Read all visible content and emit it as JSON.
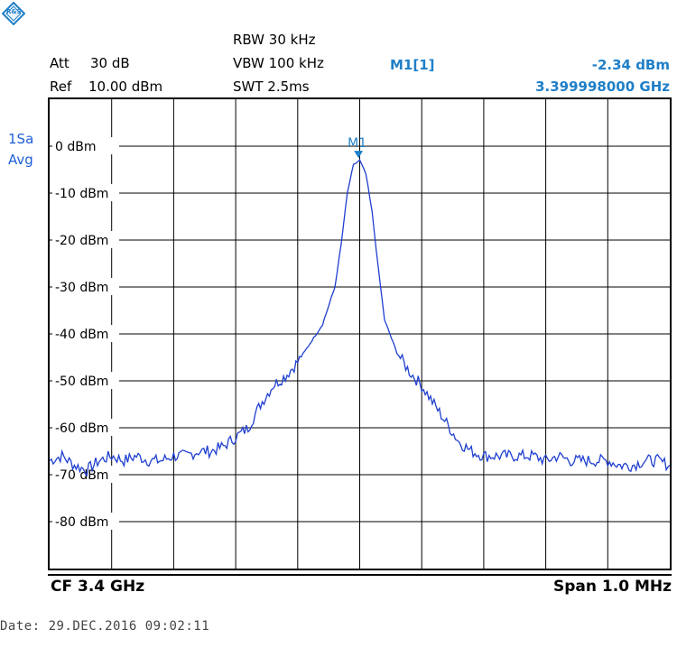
{
  "logo": {
    "text": "R&S"
  },
  "settings": {
    "att_label": "Att",
    "att_value": "30 dB",
    "ref_label": "Ref",
    "ref_value": "10.00 dBm",
    "rbw": "RBW 30 kHz",
    "vbw": "VBW 100 kHz",
    "swt": "SWT 2.5ms"
  },
  "marker": {
    "name": "M1[1]",
    "level": "-2.34 dBm",
    "freq": "3.399998000 GHz",
    "label": "M1"
  },
  "trace_info": {
    "line1": "1Sa",
    "line2": "Avg"
  },
  "footer": {
    "cf": "CF 3.4 GHz",
    "span": "Span 1.0 MHz"
  },
  "date": "Date: 29.DEC.2016  09:02:11",
  "colors": {
    "trace": "#1f3fd0",
    "marker": "#1f7fc8",
    "grid": "#000000"
  },
  "chart_data": {
    "type": "line",
    "title": "",
    "xlabel": "",
    "ylabel": "",
    "xlim": [
      3.3995,
      3.4005
    ],
    "ylim": [
      -90,
      10
    ],
    "y_ticks": [
      {
        "value": 0,
        "label": "0 dBm"
      },
      {
        "value": -10,
        "label": "-10 dBm"
      },
      {
        "value": -20,
        "label": "-20 dBm"
      },
      {
        "value": -30,
        "label": "-30 dBm"
      },
      {
        "value": -40,
        "label": "-40 dBm"
      },
      {
        "value": -50,
        "label": "-50 dBm"
      },
      {
        "value": -60,
        "label": "-60 dBm"
      },
      {
        "value": -70,
        "label": "-70 dBm"
      },
      {
        "value": -80,
        "label": "-80 dBm"
      }
    ],
    "x_divisions": 10,
    "grid": true,
    "marker_point": {
      "x": 3.399998,
      "y": -2.34
    },
    "series": [
      {
        "x": [
          3.3995,
          3.39952,
          3.39954,
          3.39956,
          3.39958,
          3.3996,
          3.39962,
          3.39964,
          3.39966,
          3.39968,
          3.3997,
          3.39972,
          3.39974,
          3.39976,
          3.39978,
          3.3998,
          3.39982,
          3.39984,
          3.39986,
          3.39988,
          3.3999,
          3.39992,
          3.39994,
          3.39996,
          3.39997,
          3.39998,
          3.39999,
          3.4,
          3.40001,
          3.40002,
          3.40003,
          3.40004,
          3.40006,
          3.40008,
          3.4001,
          3.40012,
          3.40014,
          3.40016,
          3.40018,
          3.4002,
          3.40022,
          3.40024,
          3.40026,
          3.40028,
          3.4003,
          3.40032,
          3.40034,
          3.40036,
          3.40038,
          3.4004,
          3.40042,
          3.40044,
          3.40046,
          3.40048,
          3.4005
        ],
        "values": [
          -67,
          -66,
          -68,
          -69,
          -67,
          -66,
          -67,
          -66,
          -67,
          -67,
          -66,
          -66,
          -65,
          -65,
          -64,
          -62,
          -60,
          -55,
          -51,
          -49,
          -46,
          -42,
          -38,
          -30,
          -21,
          -10,
          -4,
          -3,
          -6,
          -14,
          -26,
          -37,
          -44,
          -48,
          -51,
          -55,
          -59,
          -63,
          -65,
          -66,
          -66,
          -66,
          -66,
          -66,
          -67,
          -66,
          -67,
          -67,
          -67,
          -67,
          -68,
          -68,
          -67,
          -67,
          -68
        ]
      }
    ]
  }
}
